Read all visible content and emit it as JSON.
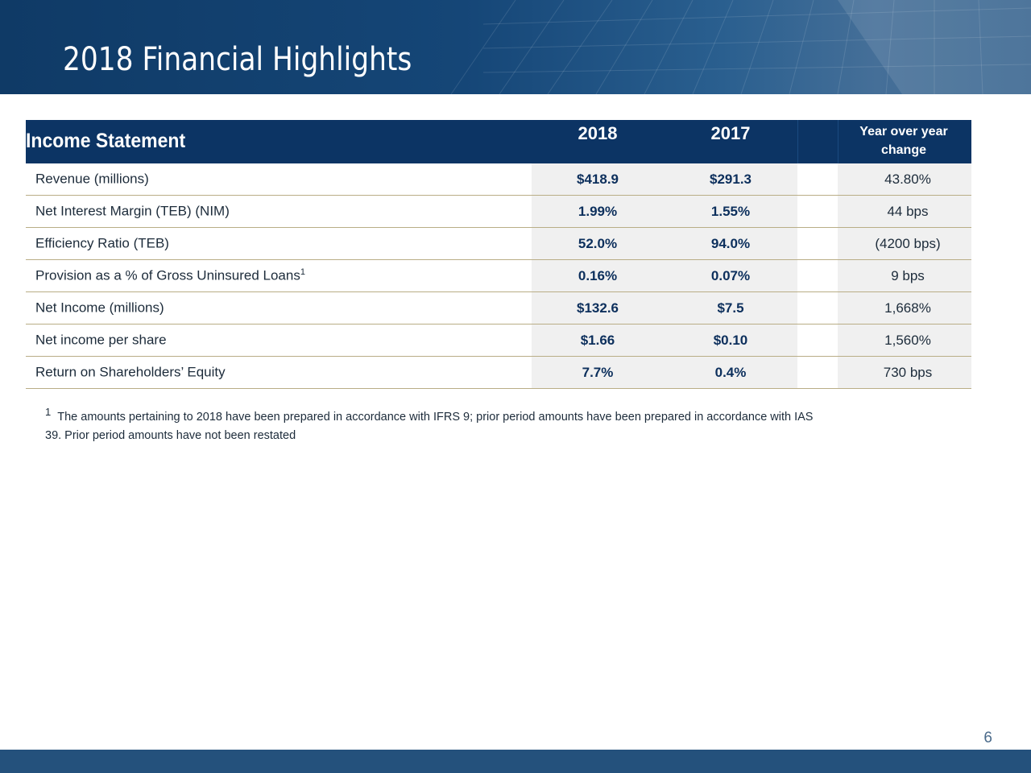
{
  "slide": {
    "title": "2018 Financial Highlights",
    "page_number": "6"
  },
  "table": {
    "header": {
      "title": "Income Statement",
      "col_2018": "2018",
      "col_2017": "2017",
      "col_yoy": "Year over year change"
    },
    "rows": [
      {
        "label": "Revenue (millions)",
        "sup": "",
        "v2018": "$418.9",
        "v2017": "$291.3",
        "yoy": "43.80%"
      },
      {
        "label": "Net Interest Margin (TEB) (NIM)",
        "sup": "",
        "v2018": "1.99%",
        "v2017": "1.55%",
        "yoy": "44 bps"
      },
      {
        "label": "Efficiency Ratio (TEB)",
        "sup": "",
        "v2018": "52.0%",
        "v2017": "94.0%",
        "yoy": "(4200 bps)"
      },
      {
        "label": "Provision as a % of Gross Uninsured Loans",
        "sup": "1",
        "v2018": "0.16%",
        "v2017": "0.07%",
        "yoy": "9 bps"
      },
      {
        "label": "Net Income  (millions)",
        "sup": "",
        "v2018": "$132.6",
        "v2017": "$7.5",
        "yoy": "1,668%"
      },
      {
        "label": "Net income per share",
        "sup": "",
        "v2018": "$1.66",
        "v2017": "$0.10",
        "yoy": "1,560%"
      },
      {
        "label": "Return on Shareholders’ Equity",
        "sup": "",
        "v2018": "7.7%",
        "v2017": "0.4%",
        "yoy": "730 bps"
      }
    ]
  },
  "footnote": {
    "mark": "1",
    "text": "The amounts pertaining to 2018 have been prepared in accordance with IFRS 9; prior period amounts have been prepared in accordance with IAS 39. Prior period amounts have not been restated"
  },
  "colors": {
    "header_navy": "#0c3464",
    "banner_blue": "#154677",
    "row_divider": "#b9ad86",
    "value_text": "#0c2f5c",
    "bottom_bar": "#24517c"
  }
}
